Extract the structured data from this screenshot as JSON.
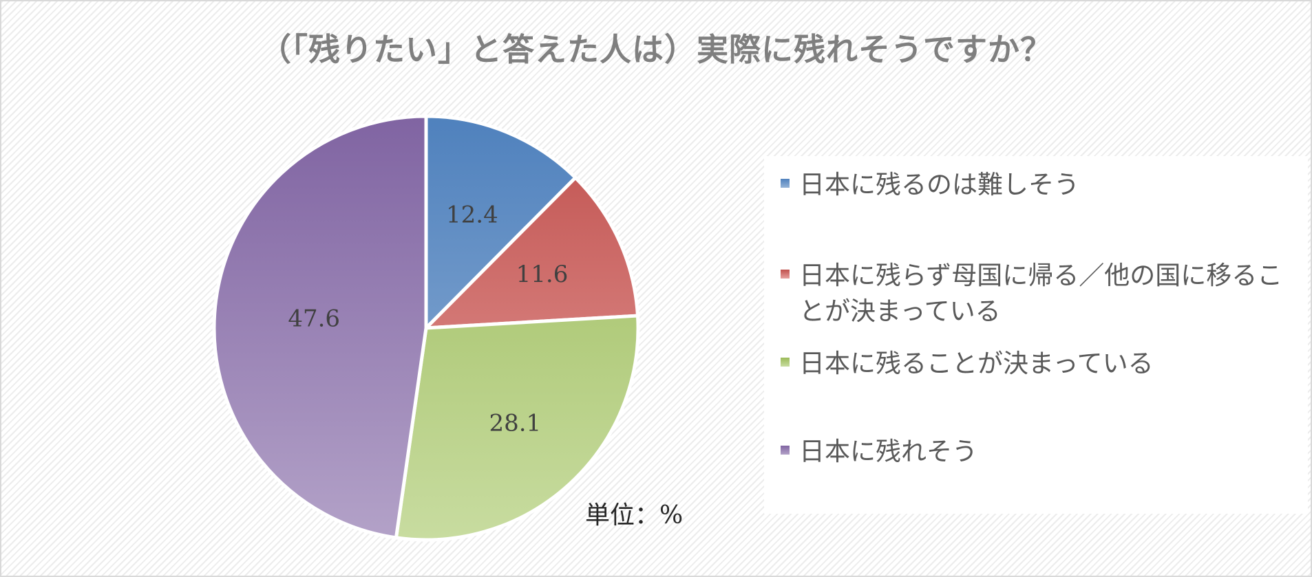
{
  "title": "（「残りたい」と答えた人は）実際に残れそうですか？",
  "unit_label": "単位：%",
  "chart_data": {
    "type": "pie",
    "title": "（「残りたい」と答えた人は）実際に残れそうですか？",
    "start_angle_deg": 0,
    "direction": "clockwise",
    "legend_position": "right",
    "slices": [
      {
        "label": "日本に残るのは難しそう",
        "value": 12.4,
        "color_top": "#4f81bd",
        "color_bottom": "#95b3d7"
      },
      {
        "label": "日本に残らず母国に帰る／他の国に移ることが決まっている",
        "value": 11.6,
        "color_top": "#c0504d",
        "color_bottom": "#e6a09e"
      },
      {
        "label": "日本に残ることが決まっている",
        "value": 28.1,
        "color_top": "#9bbb59",
        "color_bottom": "#c8dca0"
      },
      {
        "label": "日本に残れそう",
        "value": 47.6,
        "color_top": "#8064a2",
        "color_bottom": "#b3a2c8"
      }
    ]
  }
}
